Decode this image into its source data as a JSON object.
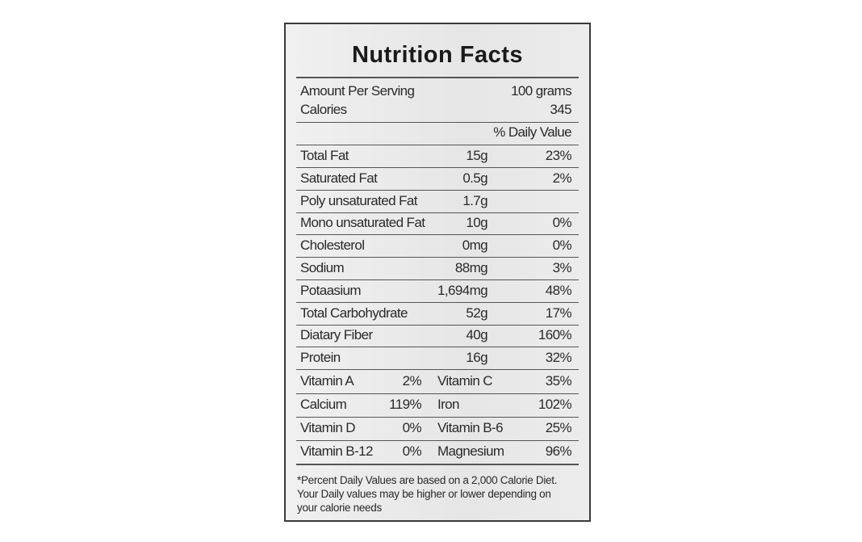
{
  "title": "Nutrition Facts",
  "serving": {
    "label": "Amount Per Serving",
    "value": "100 grams"
  },
  "calories": {
    "label": "Calories",
    "value": "345"
  },
  "daily_value_header": "% Daily Value",
  "nutrients": [
    {
      "name": "Total Fat",
      "amount": "15g",
      "daily_value": "23%"
    },
    {
      "name": "Saturated Fat",
      "amount": "0.5g",
      "daily_value": "2%"
    },
    {
      "name": "Poly unsaturated Fat",
      "amount": "1.7g"
    },
    {
      "name": "Mono unsaturated Fat",
      "amount": "10g",
      "daily_value": "0%"
    },
    {
      "name": "Cholesterol",
      "amount": "0mg",
      "daily_value": "0%"
    },
    {
      "name": "Sodium",
      "amount": "88mg",
      "daily_value": "3%"
    },
    {
      "name": "Potaasium",
      "amount": "1,694mg",
      "daily_value": "48%"
    },
    {
      "name": "Total Carbohydrate",
      "amount": "52g",
      "daily_value": "17%"
    },
    {
      "name": "Diatary Fiber",
      "amount": "40g",
      "daily_value": "160%"
    },
    {
      "name": "Protein",
      "amount": "16g",
      "daily_value": "32%"
    }
  ],
  "vitamins": [
    [
      {
        "name": "Vitamin A",
        "value": "2%"
      },
      {
        "name": "Vitamin C",
        "value": "35%"
      }
    ],
    [
      {
        "name": "Calcium",
        "value": "119%"
      },
      {
        "name": "Iron",
        "value": "102%"
      }
    ],
    [
      {
        "name": "Vitamin D",
        "value": "0%"
      },
      {
        "name": "Vitamin B-6",
        "value": "25%"
      }
    ],
    [
      {
        "name": "Vitamin B-12",
        "value": "0%"
      },
      {
        "name": "Magnesium",
        "value": "96%"
      }
    ]
  ],
  "footnote": [
    "*Percent Daily Values are based on a 2,000 Calorie Diet.",
    "Your Daily values may be higher or lower depending on",
    "your calorie needs"
  ]
}
